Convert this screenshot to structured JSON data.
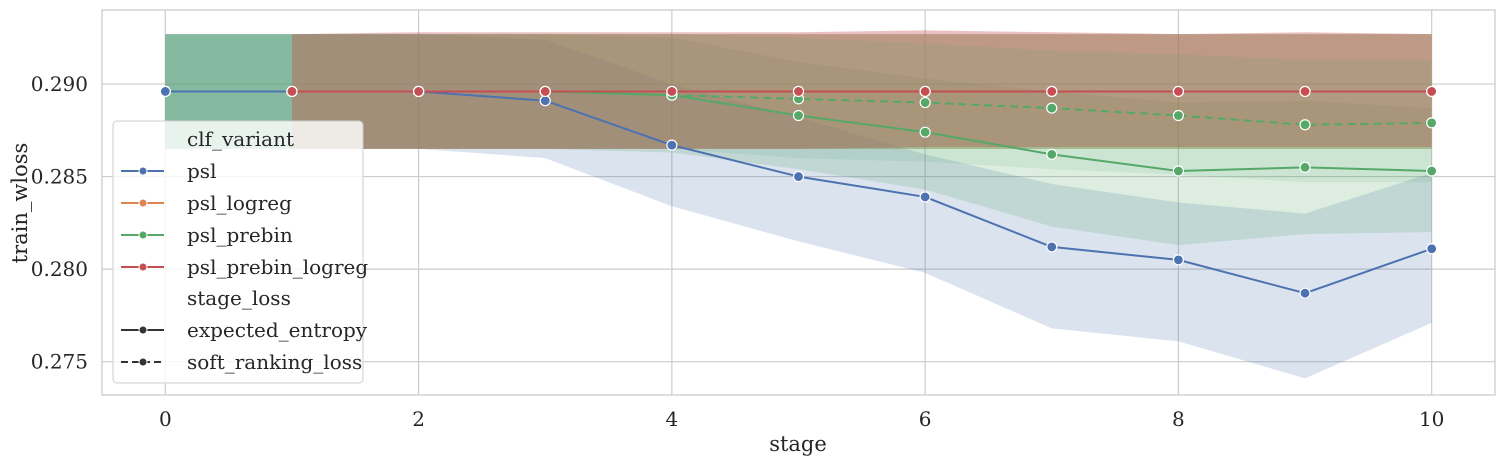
{
  "chart_data": {
    "type": "line",
    "xlabel": "stage",
    "ylabel": "train_wloss",
    "xlim": [
      -0.5,
      10.5
    ],
    "ylim": [
      0.2732,
      0.294
    ],
    "xticks": [
      "0",
      "2",
      "4",
      "6",
      "8",
      "10"
    ],
    "yticks": [
      "0.275",
      "0.280",
      "0.285",
      "0.290"
    ],
    "grid": true,
    "legend_position": "center-left",
    "legend": {
      "hue_title": "clf_variant",
      "hue_entries": [
        {
          "label": "psl",
          "color": "#4c72b0"
        },
        {
          "label": "psl_logreg",
          "color": "#dd8452"
        },
        {
          "label": "psl_prebin",
          "color": "#55a868"
        },
        {
          "label": "psl_prebin_logreg",
          "color": "#c44e52"
        }
      ],
      "style_title": "stage_loss",
      "style_entries": [
        {
          "label": "expected_entropy",
          "dash": "solid"
        },
        {
          "label": "soft_ranking_loss",
          "dash": "dashed"
        }
      ]
    },
    "bands": [
      {
        "color": "#55a868",
        "opacity": 0.45,
        "x": [
          0,
          1,
          2,
          3,
          4,
          5,
          6,
          7,
          8,
          9,
          10
        ],
        "upper": [
          0.2927,
          0.2927,
          0.2927,
          0.2927,
          0.2927,
          0.2927,
          0.2927,
          0.2927,
          0.2927,
          0.2927,
          0.2927
        ],
        "lower": [
          0.2865,
          0.2865,
          0.2865,
          0.2865,
          0.2865,
          0.2865,
          0.2865,
          0.2865,
          0.2865,
          0.2865,
          0.2865
        ]
      },
      {
        "color": "#4c72b0",
        "opacity": 0.2,
        "x": [
          0,
          1,
          2,
          3,
          4,
          5,
          6,
          7,
          8,
          9,
          10
        ],
        "upper": [
          0.2927,
          0.2927,
          0.2927,
          0.2924,
          0.29,
          0.2882,
          0.2862,
          0.2846,
          0.2836,
          0.283,
          0.2852
        ],
        "lower": [
          0.2865,
          0.2865,
          0.2865,
          0.286,
          0.2834,
          0.2815,
          0.2798,
          0.2768,
          0.2761,
          0.2741,
          0.2771
        ]
      },
      {
        "color": "#55a868",
        "opacity": 0.2,
        "x": [
          0,
          1,
          2,
          3,
          4,
          5,
          6,
          7,
          8,
          9,
          10
        ],
        "upper": [
          0.2927,
          0.2927,
          0.2927,
          0.2927,
          0.2925,
          0.2912,
          0.2903,
          0.2896,
          0.289,
          0.2891,
          0.2887
        ],
        "lower": [
          0.2865,
          0.2865,
          0.2865,
          0.2865,
          0.2863,
          0.2854,
          0.2843,
          0.2823,
          0.2813,
          0.2819,
          0.282
        ]
      },
      {
        "color": "#dd8452",
        "opacity": 0.25,
        "x": [
          1,
          2,
          3,
          4,
          5,
          6,
          7,
          8,
          9,
          10
        ],
        "upper": [
          0.2927,
          0.2927,
          0.2927,
          0.2927,
          0.2927,
          0.2927,
          0.2927,
          0.2927,
          0.2927,
          0.2927
        ],
        "lower": [
          0.2865,
          0.2865,
          0.2865,
          0.2865,
          0.2865,
          0.2865,
          0.2865,
          0.2865,
          0.2865,
          0.2865
        ]
      },
      {
        "color": "#c44e52",
        "opacity": 0.35,
        "x": [
          1,
          2,
          3,
          4,
          5,
          6,
          7,
          8,
          9,
          10
        ],
        "upper": [
          0.2927,
          0.2928,
          0.2928,
          0.2928,
          0.2928,
          0.2929,
          0.2928,
          0.2927,
          0.2928,
          0.2927
        ],
        "lower": [
          0.2865,
          0.2865,
          0.2865,
          0.2865,
          0.2865,
          0.2866,
          0.2866,
          0.2866,
          0.2866,
          0.2866
        ]
      },
      {
        "color": "#55a868",
        "opacity": 0.12,
        "x": [
          0,
          1,
          2,
          3,
          4,
          5,
          6,
          7,
          8,
          9,
          10
        ],
        "upper": [
          0.2927,
          0.2927,
          0.2927,
          0.2927,
          0.2927,
          0.2925,
          0.2922,
          0.2918,
          0.2916,
          0.2913,
          0.2913
        ],
        "lower": [
          0.2865,
          0.2865,
          0.2865,
          0.2865,
          0.2865,
          0.286,
          0.2858,
          0.2854,
          0.2851,
          0.2847,
          0.2847
        ]
      }
    ],
    "series": [
      {
        "color": "#55a868",
        "dash": "dashed",
        "x": [
          0,
          1,
          2,
          3,
          4,
          5,
          6,
          7,
          8,
          9,
          10
        ],
        "y": [
          0.2896,
          0.2896,
          0.2896,
          0.2896,
          0.2894,
          0.2892,
          0.289,
          0.2887,
          0.2883,
          0.2878,
          0.2879
        ]
      },
      {
        "color": "#dd8452",
        "dash": "solid",
        "x": [
          1,
          2,
          3,
          4,
          5,
          6,
          7,
          8,
          9,
          10
        ],
        "y": [
          0.2896,
          0.2896,
          0.2896,
          0.2896,
          0.2896,
          0.2896,
          0.2896,
          0.2896,
          0.2896,
          0.2896
        ]
      },
      {
        "color": "#55a868",
        "dash": "solid",
        "x": [
          0,
          1,
          2,
          3,
          4,
          5,
          6,
          7,
          8,
          9,
          10
        ],
        "y": [
          0.2896,
          0.2896,
          0.2896,
          0.2896,
          0.2894,
          0.2883,
          0.2874,
          0.2862,
          0.2853,
          0.2855,
          0.2853
        ]
      },
      {
        "color": "#4c72b0",
        "dash": "solid",
        "x": [
          0,
          1,
          2,
          3,
          4,
          5,
          6,
          7,
          8,
          9,
          10
        ],
        "y": [
          0.2896,
          0.2896,
          0.2896,
          0.2891,
          0.2867,
          0.285,
          0.2839,
          0.2812,
          0.2805,
          0.2787,
          0.2811
        ]
      },
      {
        "color": "#c44e52",
        "dash": "solid",
        "x": [
          1,
          2,
          3,
          4,
          5,
          6,
          7,
          8,
          9,
          10
        ],
        "y": [
          0.2896,
          0.2896,
          0.2896,
          0.2896,
          0.2896,
          0.2896,
          0.2896,
          0.2896,
          0.2896,
          0.2896
        ]
      }
    ]
  }
}
